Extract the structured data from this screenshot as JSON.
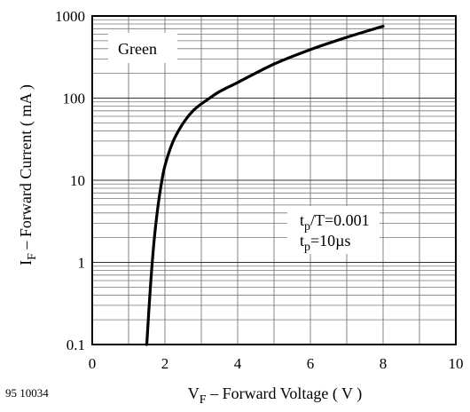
{
  "figure_id": "95 10034",
  "chart_data": {
    "type": "line",
    "title": "",
    "xlabel": {
      "sym": "V",
      "sub": "F",
      "text": " – Forward Voltage ( V )"
    },
    "ylabel": {
      "sym": "I",
      "sub": "F",
      "text": " – Forward Current ( mA )"
    },
    "xlim": [
      0,
      10
    ],
    "ylim": [
      0.1,
      1000
    ],
    "yscale": "log",
    "grid": true,
    "x_ticks": [
      0,
      2,
      4,
      6,
      8,
      10
    ],
    "x_tick_labels": [
      "0",
      "2",
      "4",
      "6",
      "8",
      "10"
    ],
    "y_ticks": [
      0.1,
      1,
      10,
      100,
      1000
    ],
    "y_tick_labels": [
      "0.1",
      "1",
      "10",
      "100",
      "1000"
    ],
    "legend_placement": "top-left",
    "series": [
      {
        "name": "Green",
        "color": "#000000",
        "x": [
          1.5,
          1.6,
          1.7,
          1.8,
          1.9,
          2.0,
          2.2,
          2.4,
          2.6,
          2.8,
          3.0,
          3.2,
          3.5,
          4.0,
          5.0,
          6.0,
          7.0,
          8.0
        ],
        "y": [
          0.1,
          0.5,
          1.8,
          4.5,
          9,
          15,
          28,
          42,
          57,
          72,
          85,
          98,
          120,
          155,
          260,
          390,
          550,
          750
        ]
      }
    ],
    "annotation": {
      "line1": {
        "sym": "t",
        "sub": "p",
        "text": "/T=0.001"
      },
      "line2": {
        "sym": "t",
        "sub": "p",
        "text": "=10µs"
      }
    }
  }
}
